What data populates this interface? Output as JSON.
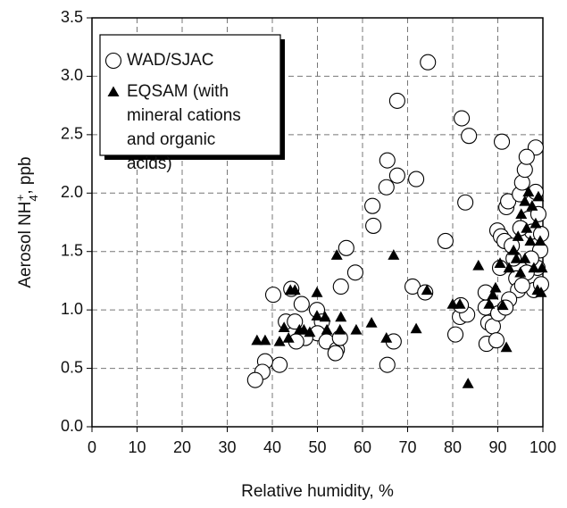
{
  "chart_data": {
    "type": "scatter",
    "x_label": "Relative humidity,  %",
    "y_label": [
      "Aerosol NH",
      "4",
      "+",
      ",  ppb"
    ],
    "xlim": [
      0,
      100
    ],
    "ylim": [
      0,
      3.5
    ],
    "xticks": [
      0,
      10,
      20,
      30,
      40,
      50,
      60,
      70,
      80,
      90,
      100
    ],
    "yticks": [
      {
        "value": 0,
        "label": "0.0"
      },
      0.5,
      {
        "value": 1,
        "label": "1.0"
      },
      1.5,
      {
        "value": 2,
        "label": "2.0"
      },
      2.5,
      {
        "value": 3,
        "label": "3.0"
      },
      3.5
    ],
    "grid": true,
    "legend": "upper left",
    "series": [
      {
        "name": "WAD/SJAC",
        "marker": "circle",
        "color": "#ffffff",
        "edgecolor": "#000000",
        "x": [
          74.5,
          67.7,
          82,
          83.6,
          90.9,
          98.4,
          65.5,
          67.7,
          65.3,
          71.9,
          62.2,
          62.4,
          82.8,
          56.4,
          58.4,
          55.2,
          78.4,
          40.2,
          44.2,
          46.5,
          49.9,
          43,
          45,
          51,
          50,
          47.3,
          45.3,
          52,
          54.3,
          54,
          55,
          41.6,
          38.4,
          37.8,
          36.2,
          71.1,
          73.9,
          65.5,
          66.9,
          80.6,
          81.6,
          83.2,
          81.8,
          87.3,
          87.3,
          87.5,
          87.9,
          88.9,
          89.7,
          90.1,
          90.5,
          89.9,
          90.7,
          91.5,
          91.9,
          92.3,
          93.1,
          93.5,
          94.1,
          94.5,
          94.9,
          95.4,
          96,
          96.4,
          96.8,
          97.6,
          98.4,
          99,
          99.4,
          98.8,
          98,
          97.4,
          96.4,
          95.4,
          95,
          99.6,
          99.6,
          92.5,
          91.7
        ],
        "values": [
          3.12,
          2.79,
          2.64,
          2.49,
          2.44,
          2.39,
          2.28,
          2.15,
          2.05,
          2.12,
          1.89,
          1.72,
          1.92,
          1.53,
          1.32,
          1.2,
          1.59,
          1.13,
          1.18,
          1.05,
          1.0,
          0.9,
          0.9,
          0.9,
          0.8,
          0.76,
          0.73,
          0.73,
          0.66,
          0.63,
          0.76,
          0.53,
          0.56,
          0.47,
          0.4,
          1.2,
          1.15,
          0.53,
          0.73,
          0.79,
          0.94,
          0.96,
          1.04,
          1.02,
          1.15,
          0.71,
          0.89,
          0.86,
          0.74,
          0.97,
          1.36,
          1.68,
          1.63,
          1.59,
          1.88,
          1.93,
          1.55,
          1.44,
          1.27,
          1.17,
          1.99,
          2.09,
          2.2,
          2.31,
          1.78,
          1.67,
          2.01,
          1.82,
          1.51,
          1.36,
          1.17,
          1.44,
          1.32,
          1.21,
          1.7,
          1.65,
          1.22,
          1.09,
          1.02
        ]
      },
      {
        "name": "EQSAM (with mineral cations and organic acids)",
        "marker": "triangle",
        "color": "#000000",
        "x": [
          36.6,
          38.4,
          41.6,
          42.6,
          44,
          45,
          43.6,
          46,
          47,
          48.3,
          49.9,
          49.9,
          51.7,
          52.1,
          54.3,
          55.2,
          55,
          58.6,
          62,
          65.3,
          66.9,
          71.9,
          74.3,
          80,
          81.6,
          83.4,
          85.7,
          88.1,
          88.9,
          89.5,
          90.5,
          91.9,
          91.1,
          92.5,
          93.5,
          94.5,
          95.2,
          96,
          96.8,
          97.6,
          98.4,
          99,
          99.4,
          99.8,
          98.8,
          98,
          97.2,
          96,
          95,
          94.1,
          99.6,
          96.4
        ],
        "values": [
          0.74,
          0.74,
          0.73,
          0.85,
          1.17,
          1.17,
          0.76,
          0.83,
          0.83,
          0.81,
          0.95,
          1.15,
          0.94,
          0.83,
          1.47,
          0.94,
          0.83,
          0.83,
          0.89,
          0.76,
          1.47,
          0.84,
          1.17,
          1.05,
          1.05,
          0.37,
          1.38,
          1.05,
          1.13,
          1.19,
          1.4,
          0.68,
          1.04,
          1.36,
          1.51,
          1.63,
          1.82,
          1.93,
          2.01,
          1.89,
          1.74,
          1.97,
          1.59,
          1.36,
          1.17,
          1.36,
          1.59,
          1.44,
          1.32,
          1.44,
          1.15,
          1.7
        ]
      }
    ]
  }
}
